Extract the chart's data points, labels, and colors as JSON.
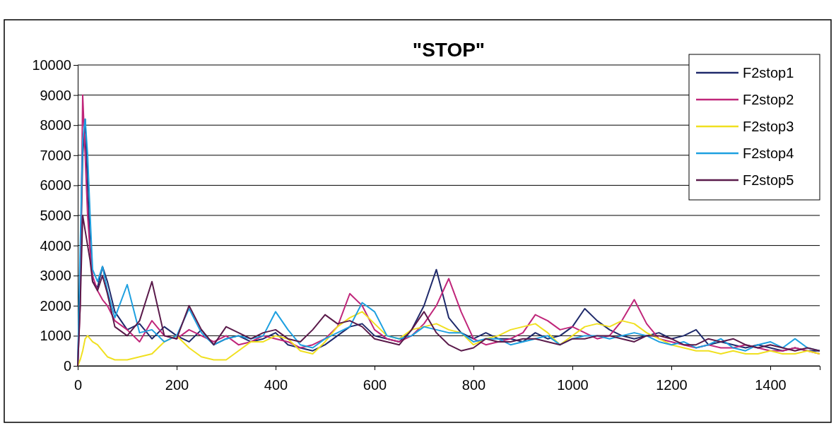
{
  "chart_data": {
    "type": "line",
    "title": "\"STOP\"",
    "x": [
      0,
      5,
      10,
      15,
      20,
      25,
      30,
      40,
      50,
      60,
      75,
      100,
      125,
      150,
      175,
      200,
      225,
      250,
      275,
      300,
      325,
      350,
      375,
      400,
      425,
      450,
      475,
      500,
      525,
      550,
      575,
      600,
      625,
      650,
      675,
      700,
      725,
      750,
      775,
      800,
      825,
      850,
      875,
      900,
      925,
      950,
      975,
      1000,
      1025,
      1050,
      1075,
      1100,
      1125,
      1150,
      1175,
      1200,
      1225,
      1250,
      1275,
      1300,
      1325,
      1350,
      1375,
      1400,
      1425,
      1450,
      1475,
      1500
    ],
    "series": [
      {
        "name": "F2stop1",
        "color": "#1f2a6b",
        "values": [
          0,
          3000,
          7000,
          8200,
          6000,
          4000,
          2800,
          2600,
          3300,
          2800,
          1800,
          1200,
          1400,
          900,
          1300,
          1000,
          800,
          1200,
          700,
          900,
          1000,
          800,
          900,
          1100,
          700,
          600,
          500,
          700,
          1000,
          1300,
          1400,
          1000,
          900,
          800,
          1200,
          2000,
          3200,
          1600,
          1100,
          900,
          1100,
          900,
          900,
          800,
          1100,
          900,
          1000,
          1300,
          1900,
          1500,
          1200,
          1000,
          900,
          1000,
          1100,
          900,
          1000,
          1200,
          700,
          800,
          700,
          600,
          700,
          600,
          500,
          600,
          500,
          500
        ]
      },
      {
        "name": "F2stop2",
        "color": "#c0267a",
        "values": [
          0,
          2000,
          9000,
          7000,
          5000,
          3800,
          3000,
          2500,
          2200,
          2000,
          1500,
          1200,
          800,
          1500,
          1000,
          900,
          1200,
          1000,
          800,
          1000,
          700,
          800,
          1000,
          900,
          800,
          600,
          700,
          900,
          1300,
          2400,
          2000,
          1200,
          900,
          800,
          1000,
          1400,
          2000,
          2900,
          1800,
          900,
          700,
          800,
          900,
          1100,
          1700,
          1500,
          1200,
          1300,
          1100,
          900,
          1000,
          1500,
          2200,
          1400,
          900,
          800,
          700,
          600,
          700,
          600,
          600,
          700,
          600,
          500,
          500,
          600,
          500,
          400
        ]
      },
      {
        "name": "F2stop3",
        "color": "#f0e020",
        "values": [
          0,
          200,
          500,
          900,
          1000,
          900,
          800,
          700,
          500,
          300,
          200,
          200,
          300,
          400,
          800,
          1000,
          600,
          300,
          200,
          200,
          500,
          800,
          800,
          1000,
          900,
          500,
          400,
          800,
          1300,
          1600,
          1800,
          1400,
          1000,
          900,
          1200,
          1300,
          1400,
          1200,
          1100,
          700,
          900,
          1000,
          1200,
          1300,
          1400,
          1100,
          700,
          1000,
          1300,
          1400,
          1300,
          1500,
          1400,
          1100,
          900,
          700,
          600,
          500,
          500,
          400,
          500,
          400,
          400,
          500,
          400,
          400,
          500,
          400
        ]
      },
      {
        "name": "F2stop4",
        "color": "#1ea0e0",
        "values": [
          0,
          4000,
          7500,
          8200,
          7000,
          5000,
          3200,
          2800,
          3300,
          2500,
          1600,
          2700,
          1100,
          1200,
          800,
          1000,
          1900,
          1100,
          700,
          900,
          1000,
          900,
          1000,
          1800,
          1200,
          700,
          600,
          900,
          1100,
          1300,
          2100,
          1800,
          1000,
          900,
          1000,
          1300,
          1200,
          1100,
          1100,
          800,
          900,
          900,
          700,
          800,
          900,
          1000,
          700,
          900,
          1000,
          1000,
          900,
          1000,
          1100,
          1000,
          800,
          700,
          800,
          600,
          700,
          900,
          600,
          500,
          700,
          800,
          600,
          900,
          600,
          500
        ]
      },
      {
        "name": "F2stop5",
        "color": "#5a1a4a",
        "values": [
          0,
          2000,
          5000,
          4500,
          4000,
          3500,
          2800,
          2500,
          3000,
          2400,
          1300,
          1000,
          1500,
          2800,
          1000,
          900,
          2000,
          1200,
          700,
          1300,
          1100,
          900,
          1100,
          1200,
          900,
          800,
          1200,
          1700,
          1400,
          1500,
          1300,
          900,
          800,
          700,
          1200,
          1800,
          1100,
          700,
          500,
          600,
          900,
          800,
          800,
          900,
          900,
          800,
          700,
          900,
          900,
          1000,
          1000,
          900,
          800,
          1000,
          1000,
          900,
          700,
          700,
          900,
          800,
          900,
          700,
          600,
          700,
          600,
          500,
          600,
          500
        ]
      }
    ],
    "xlim": [
      0,
      1500
    ],
    "xticks": [
      0,
      200,
      400,
      600,
      800,
      1000,
      1200,
      1400
    ],
    "ylim": [
      0,
      10000
    ],
    "yticks": [
      0,
      1000,
      2000,
      3000,
      4000,
      5000,
      6000,
      7000,
      8000,
      9000,
      10000
    ],
    "grid": "y",
    "legend": "top right",
    "marker": "none",
    "line_style": "solid"
  }
}
